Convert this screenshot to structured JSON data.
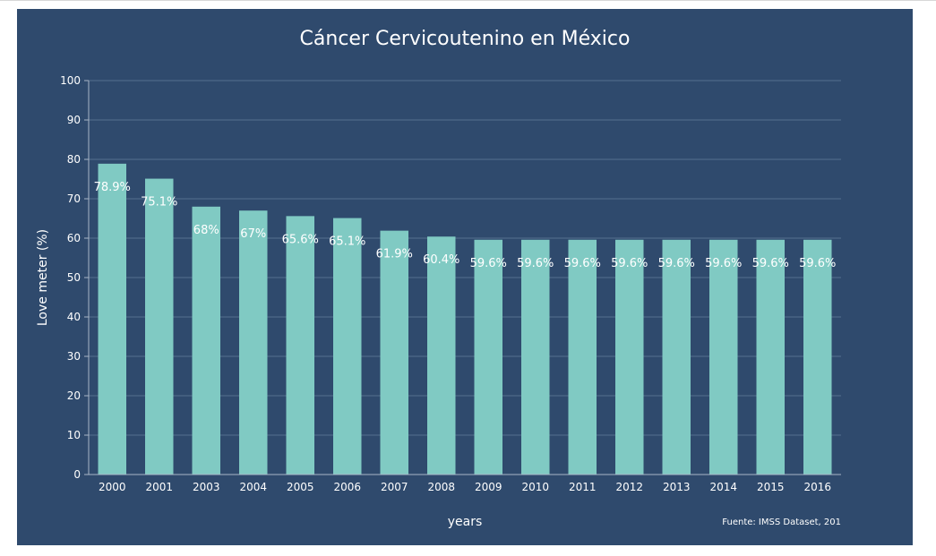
{
  "chart_data": {
    "type": "bar",
    "title": "Cáncer Cervicoutenino en México",
    "xlabel": "years",
    "ylabel": "Love meter (%)",
    "source": "Fuente: IMSS Dataset, 201",
    "ylim": [
      0,
      100
    ],
    "yticks": [
      0,
      10,
      20,
      30,
      40,
      50,
      60,
      70,
      80,
      90,
      100
    ],
    "grid": true,
    "categories": [
      "2000",
      "2001",
      "2003",
      "2004",
      "2005",
      "2006",
      "2007",
      "2008",
      "2009",
      "2010",
      "2011",
      "2012",
      "2013",
      "2014",
      "2015",
      "2016"
    ],
    "values": [
      78.9,
      75.1,
      68,
      67,
      65.6,
      65.1,
      61.9,
      60.4,
      59.6,
      59.6,
      59.6,
      59.6,
      59.6,
      59.6,
      59.6,
      59.6
    ],
    "data_labels": [
      "78.9%",
      "75.1%",
      "68%",
      "67%",
      "65.6%",
      "65.1%",
      "61.9%",
      "60.4%",
      "59.6%",
      "59.6%",
      "59.6%",
      "59.6%",
      "59.6%",
      "59.6%",
      "59.6%",
      "59.6%"
    ],
    "colors": {
      "background": "#2f4a6d",
      "bar": "#80cac3",
      "grid": "#56708f",
      "text": "#ffffff"
    }
  }
}
